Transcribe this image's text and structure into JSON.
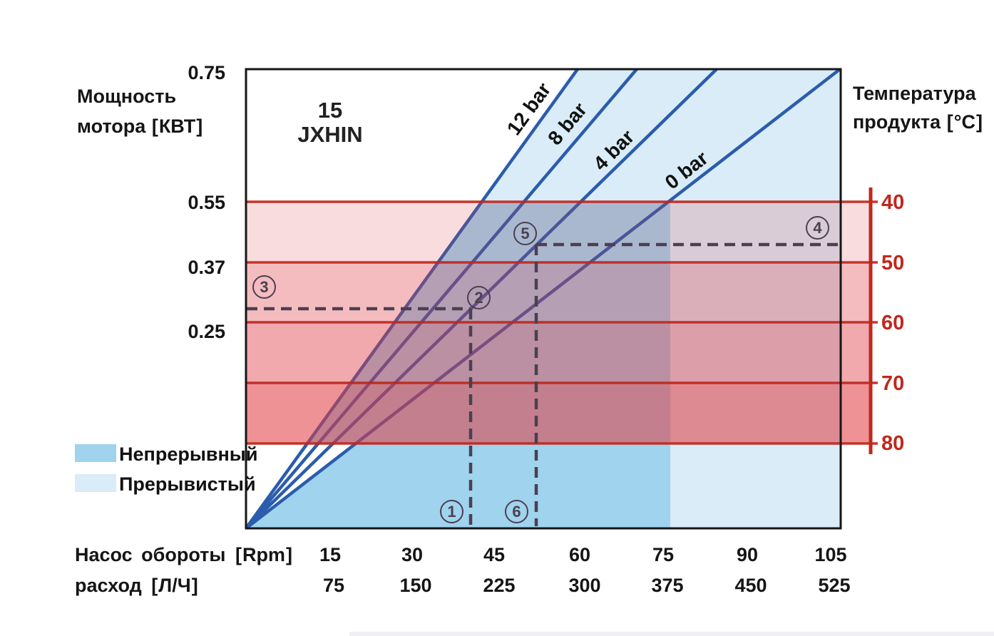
{
  "model": {
    "line1": "15",
    "line2": "JXHIN"
  },
  "left_axis": {
    "title1": "Мощность",
    "title2": "мотора 【КВТ】",
    "ticks": [
      "0.75",
      "0.55",
      "0.37",
      "0.25"
    ]
  },
  "right_axis": {
    "title1": "Температура",
    "title2": "продукта 【℃】",
    "ticks": [
      "40",
      "50",
      "60",
      "70",
      "80"
    ]
  },
  "bottom_axis": {
    "row1_label": "Насос обороты 【Rpm】",
    "row2_label": "расход 【Л/Ч】",
    "rpm": [
      "15",
      "30",
      "45",
      "60",
      "75",
      "90",
      "105"
    ],
    "flow": [
      "75",
      "150",
      "225",
      "300",
      "375",
      "450",
      "525"
    ]
  },
  "pressure_lines": [
    {
      "label": "12 bar"
    },
    {
      "label": "8 bar"
    },
    {
      "label": "4 bar"
    },
    {
      "label": "0 bar"
    }
  ],
  "legend": [
    {
      "label": "Непрерывный",
      "color": "#9fd3ee"
    },
    {
      "label": "Прерывистый",
      "color": "#d9ecf7"
    }
  ],
  "markers": [
    "1",
    "2",
    "3",
    "4",
    "5",
    "6"
  ],
  "colors": {
    "line_blue": "#2b5cad",
    "fill_continuous": "#9fd3ee",
    "fill_intermittent": "#d9ecf7",
    "red": "#c1271d",
    "band_base_rgb": "224,60,68",
    "band_alphas": [
      0.18,
      0.34,
      0.44,
      0.56
    ],
    "dashed": "#4a4050",
    "frame": "#161616"
  },
  "chart_data": {
    "type": "line",
    "title": "15 JXHIN",
    "xlabel_rpm": "Насос обороты 【Rpm】",
    "xlabel_flow": "расход 【Л/Ч】",
    "ylabel_left": "Мощность мотора 【КВТ】",
    "ylabel_right": "Температура продукта 【℃】",
    "x_ticks_rpm": [
      15,
      30,
      45,
      60,
      75,
      90,
      105
    ],
    "x_ticks_flow_lph": [
      75,
      150,
      225,
      300,
      375,
      450,
      525
    ],
    "y_ticks_kw": [
      0.25,
      0.37,
      0.55,
      0.75
    ],
    "right_axis_ticks_c": [
      40,
      50,
      60,
      70,
      80
    ],
    "series": [
      {
        "name": "12 bar",
        "points_rpm_kw": [
          [
            0,
            0
          ],
          [
            59,
            0.75
          ]
        ]
      },
      {
        "name": "8 bar",
        "points_rpm_kw": [
          [
            0,
            0
          ],
          [
            70,
            0.75
          ]
        ]
      },
      {
        "name": "4 bar",
        "points_rpm_kw": [
          [
            0,
            0
          ],
          [
            84,
            0.75
          ]
        ]
      },
      {
        "name": "0 bar",
        "points_rpm_kw": [
          [
            0,
            0
          ],
          [
            106,
            0.75
          ]
        ]
      }
    ],
    "regions": {
      "continuous_zone_max_rpm": 75,
      "continuous_label": "Непрерывный",
      "intermittent_label": "Прерывистый",
      "temperature_bands_c": [
        [
          40,
          50
        ],
        [
          50,
          60
        ],
        [
          60,
          70
        ],
        [
          70,
          80
        ]
      ],
      "temperature_at_055_kw_c": 40,
      "temperature_at_080_c_kw_level": "below 0.25"
    },
    "annotation_markers": [
      "1",
      "2",
      "3",
      "4",
      "5",
      "6"
    ],
    "legend_position": "bottom-left",
    "grid": false
  }
}
